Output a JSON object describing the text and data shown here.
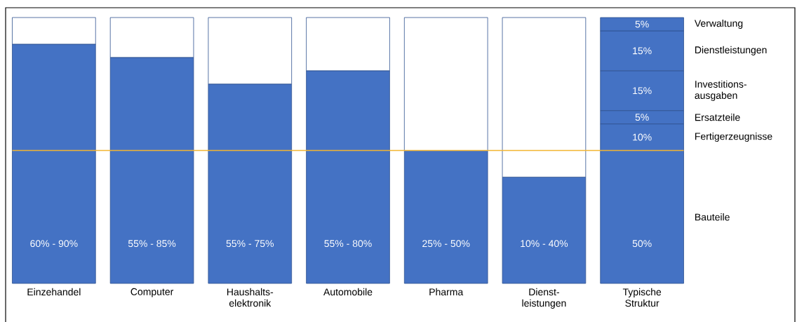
{
  "chart_data": {
    "type": "bar",
    "stacked": true,
    "categories": [
      "Einzehandel",
      "Computer",
      "Haushalts- elektronik",
      "Automobile",
      "Pharma",
      "Dienst- leistungen",
      "Typische Struktur"
    ],
    "series": [
      {
        "name": "Bauteile",
        "color": "#4472c4",
        "values": [
          90,
          85,
          75,
          80,
          50,
          40,
          50
        ],
        "value_labels": [
          null,
          null,
          null,
          null,
          null,
          null,
          "50%"
        ]
      },
      {
        "name": "Fertigerzeugnisse",
        "color": "#4472c4",
        "values": [
          null,
          null,
          null,
          null,
          null,
          null,
          10
        ],
        "value_labels": [
          null,
          null,
          null,
          null,
          null,
          null,
          "10%"
        ]
      },
      {
        "name": "Ersatzteile",
        "color": "#4472c4",
        "values": [
          null,
          null,
          null,
          null,
          null,
          null,
          5
        ],
        "value_labels": [
          null,
          null,
          null,
          null,
          null,
          null,
          "5%"
        ]
      },
      {
        "name": "Investitions- ausgaben",
        "color": "#4472c4",
        "values": [
          null,
          null,
          null,
          null,
          null,
          null,
          15
        ],
        "value_labels": [
          null,
          null,
          null,
          null,
          null,
          null,
          "15%"
        ]
      },
      {
        "name": "Dienstleistungen",
        "color": "#4472c4",
        "values": [
          null,
          null,
          null,
          null,
          null,
          null,
          15
        ],
        "value_labels": [
          null,
          null,
          null,
          null,
          null,
          null,
          "15%"
        ]
      },
      {
        "name": "Verwaltung",
        "color": "#4472c4",
        "values": [
          null,
          null,
          null,
          null,
          null,
          null,
          5
        ],
        "value_labels": [
          null,
          null,
          null,
          null,
          null,
          null,
          "5%"
        ]
      },
      {
        "color": "#ffffff",
        "values": [
          10,
          15,
          25,
          20,
          50,
          60,
          null
        ]
      }
    ],
    "annotations": [
      "60% - 90%",
      "55% - 85%",
      "55% - 75%",
      "55% - 80%",
      "25% - 50%",
      "10% - 40%"
    ],
    "ylim": [
      0,
      100
    ],
    "tick_labels": "x",
    "ref_lines": [
      {
        "axis": "y",
        "value": 50,
        "color": "#f2b531"
      }
    ]
  }
}
